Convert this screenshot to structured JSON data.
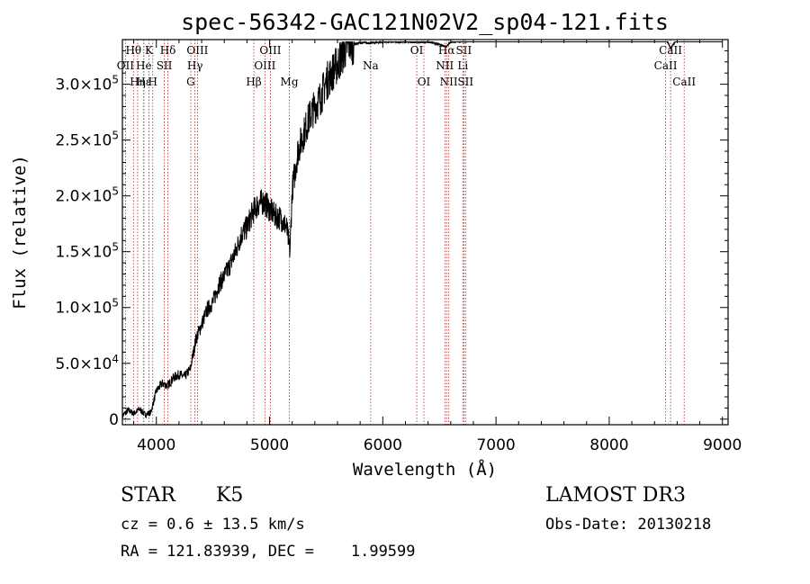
{
  "chart_data": {
    "type": "line",
    "title": "spec-56342-GAC121N02V2_sp04-121.fits",
    "xlabel": "Wavelength (Å)",
    "ylabel": "Flux (relative)",
    "xlim": [
      3700,
      9050
    ],
    "ylim": [
      -5000,
      340000
    ],
    "x_ticks": [
      4000,
      5000,
      6000,
      7000,
      8000,
      9000
    ],
    "y_ticks": [
      {
        "value": 0,
        "label": "0"
      },
      {
        "value": 50000,
        "mant": "5.0",
        "exp": "4"
      },
      {
        "value": 100000,
        "mant": "1.0",
        "exp": "5"
      },
      {
        "value": 150000,
        "mant": "1.5",
        "exp": "5"
      },
      {
        "value": 200000,
        "mant": "2.0",
        "exp": "5"
      },
      {
        "value": 250000,
        "mant": "2.5",
        "exp": "5"
      },
      {
        "value": 300000,
        "mant": "3.0",
        "exp": "5"
      }
    ],
    "spectrum": {
      "name": "flux",
      "x": [
        3700,
        3750,
        3800,
        3850,
        3900,
        3950,
        4000,
        4050,
        4100,
        4150,
        4200,
        4250,
        4300,
        4350,
        4400,
        4450,
        4500,
        4550,
        4600,
        4650,
        4700,
        4750,
        4800,
        4850,
        4900,
        4950,
        5000,
        5050,
        5100,
        5150,
        5180,
        5200,
        5250,
        5300,
        5350,
        5400,
        5450,
        5500,
        5550,
        5600,
        5650,
        5700,
        5750,
        5800,
        5900,
        6000,
        6200,
        6400,
        6562,
        6600,
        6800,
        7000,
        7200,
        7400,
        7600,
        7800,
        8000,
        8200,
        8400,
        8500,
        8542,
        8600,
        8700,
        8800,
        8900,
        9000
      ],
      "y": [
        3000,
        8000,
        5000,
        9000,
        4000,
        6000,
        25000,
        32000,
        30000,
        37000,
        40000,
        38000,
        45000,
        72000,
        85000,
        98000,
        105000,
        120000,
        128000,
        138000,
        150000,
        165000,
        172000,
        185000,
        193000,
        195000,
        188000,
        182000,
        180000,
        172000,
        150000,
        205000,
        240000,
        255000,
        270000,
        280000,
        288000,
        302000,
        310000,
        318000,
        328000,
        337000,
        336000,
        337000,
        337000,
        338000,
        338000,
        338000,
        334000,
        338000,
        339000,
        339000,
        340000,
        340000,
        339000,
        340000,
        341000,
        341000,
        341000,
        341000,
        332000,
        341000,
        341000,
        341000,
        342000,
        343000
      ]
    },
    "line_markers": [
      {
        "label": "Hθ",
        "wave": 3798,
        "row": 0
      },
      {
        "label": "OII",
        "wave": 3727,
        "row": 1
      },
      {
        "label": "Hε",
        "wave": 3889,
        "row": 2
      },
      {
        "label": "He",
        "wave": 3889,
        "row": 1
      },
      {
        "label": "Hη",
        "wave": 3835,
        "row": 2
      },
      {
        "label": "K",
        "wave": 3934,
        "row": 0
      },
      {
        "label": "H",
        "wave": 3968,
        "row": 2
      },
      {
        "label": "SII",
        "wave": 4070,
        "row": 1
      },
      {
        "label": "Hδ",
        "wave": 4102,
        "row": 0
      },
      {
        "label": "OIII",
        "wave": 4363,
        "row": 0
      },
      {
        "label": "Hγ",
        "wave": 4341,
        "row": 1
      },
      {
        "label": "G",
        "wave": 4304,
        "row": 2
      },
      {
        "label": "Hβ",
        "wave": 4861,
        "row": 2
      },
      {
        "label": "OIII",
        "wave": 5007,
        "row": 0
      },
      {
        "label": "OIII",
        "wave": 4959,
        "row": 1
      },
      {
        "label": "Mg",
        "wave": 5175,
        "row": 2
      },
      {
        "label": "Na",
        "wave": 5893,
        "row": 1
      },
      {
        "label": "OI",
        "wave": 6300,
        "row": 0
      },
      {
        "label": "OI",
        "wave": 6363,
        "row": 2
      },
      {
        "label": "Hα",
        "wave": 6563,
        "row": 0
      },
      {
        "label": "NII",
        "wave": 6548,
        "row": 1
      },
      {
        "label": "NII",
        "wave": 6583,
        "row": 2
      },
      {
        "label": "SII",
        "wave": 6716,
        "row": 0
      },
      {
        "label": "Li",
        "wave": 6707,
        "row": 1
      },
      {
        "label": "SII",
        "wave": 6731,
        "row": 2
      },
      {
        "label": "CaII",
        "wave": 8542,
        "row": 0
      },
      {
        "label": "CaII",
        "wave": 8498,
        "row": 1
      },
      {
        "label": "CaII",
        "wave": 8662,
        "row": 2
      }
    ]
  },
  "info": {
    "class": "STAR",
    "subclass": "K5",
    "cz": "cz = 0.6 ± 13.5 km/s",
    "radec": "RA = 121.83939, DEC =    1.99599",
    "survey": "LAMOST DR3",
    "obs_date": "Obs-Date: 20130218"
  },
  "colors": {
    "marker": "#b22222",
    "line": "#000000"
  }
}
